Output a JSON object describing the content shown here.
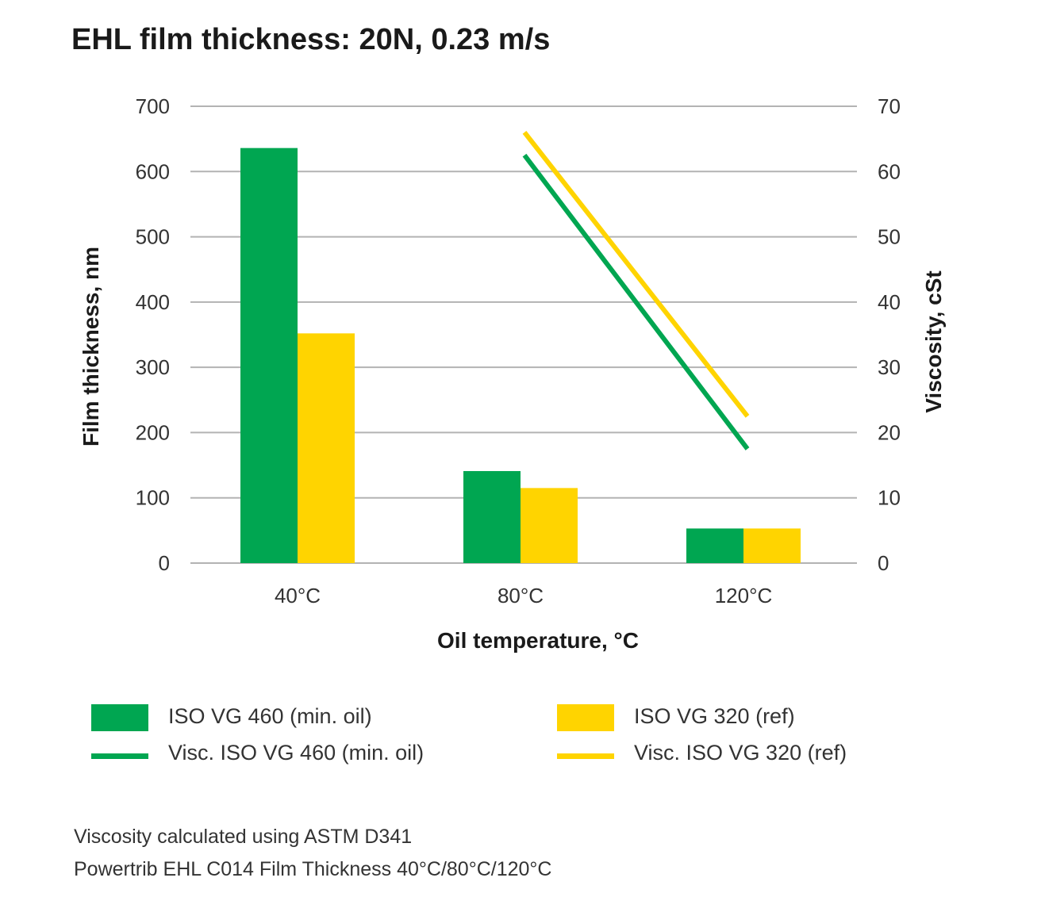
{
  "chart_data": {
    "type": "bar",
    "title": "EHL film thickness: 20N, 0.23 m/s",
    "xlabel": "Oil temperature, °C",
    "ylabel": "Film thickness, nm",
    "y2label": "Viscosity, cSt",
    "categories": [
      "40°C",
      "80°C",
      "120°C"
    ],
    "ylim": [
      0,
      700
    ],
    "y2lim": [
      0,
      70
    ],
    "yticks": [
      "0",
      "100",
      "200",
      "300",
      "400",
      "500",
      "600",
      "700"
    ],
    "y2ticks": [
      "0",
      "10",
      "20",
      "30",
      "40",
      "50",
      "60",
      "70"
    ],
    "grid": true,
    "series": [
      {
        "name": "ISO VG 460 (min. oil)",
        "type": "bar",
        "color": "#00a651",
        "values": [
          636,
          141,
          53
        ]
      },
      {
        "name": "ISO VG 320 (ref)",
        "type": "bar",
        "color": "#ffd400",
        "values": [
          352,
          115,
          53
        ]
      },
      {
        "name": "Visc. ISO VG 460 (min. oil)",
        "type": "line",
        "axis": "y2",
        "color": "#00a651",
        "x": [
          "80°C",
          "120°C"
        ],
        "values": [
          62.5,
          17.5
        ]
      },
      {
        "name": "Visc. ISO VG 320 (ref)",
        "type": "line",
        "axis": "y2",
        "color": "#ffd400",
        "x": [
          "80°C",
          "120°C"
        ],
        "values": [
          66,
          22.5
        ]
      }
    ],
    "legend_position": "bottom"
  },
  "notes": [
    "Viscosity calculated using ASTM D341",
    "Powertrib EHL C014 Film Thickness 40°C/80°C/120°C"
  ]
}
